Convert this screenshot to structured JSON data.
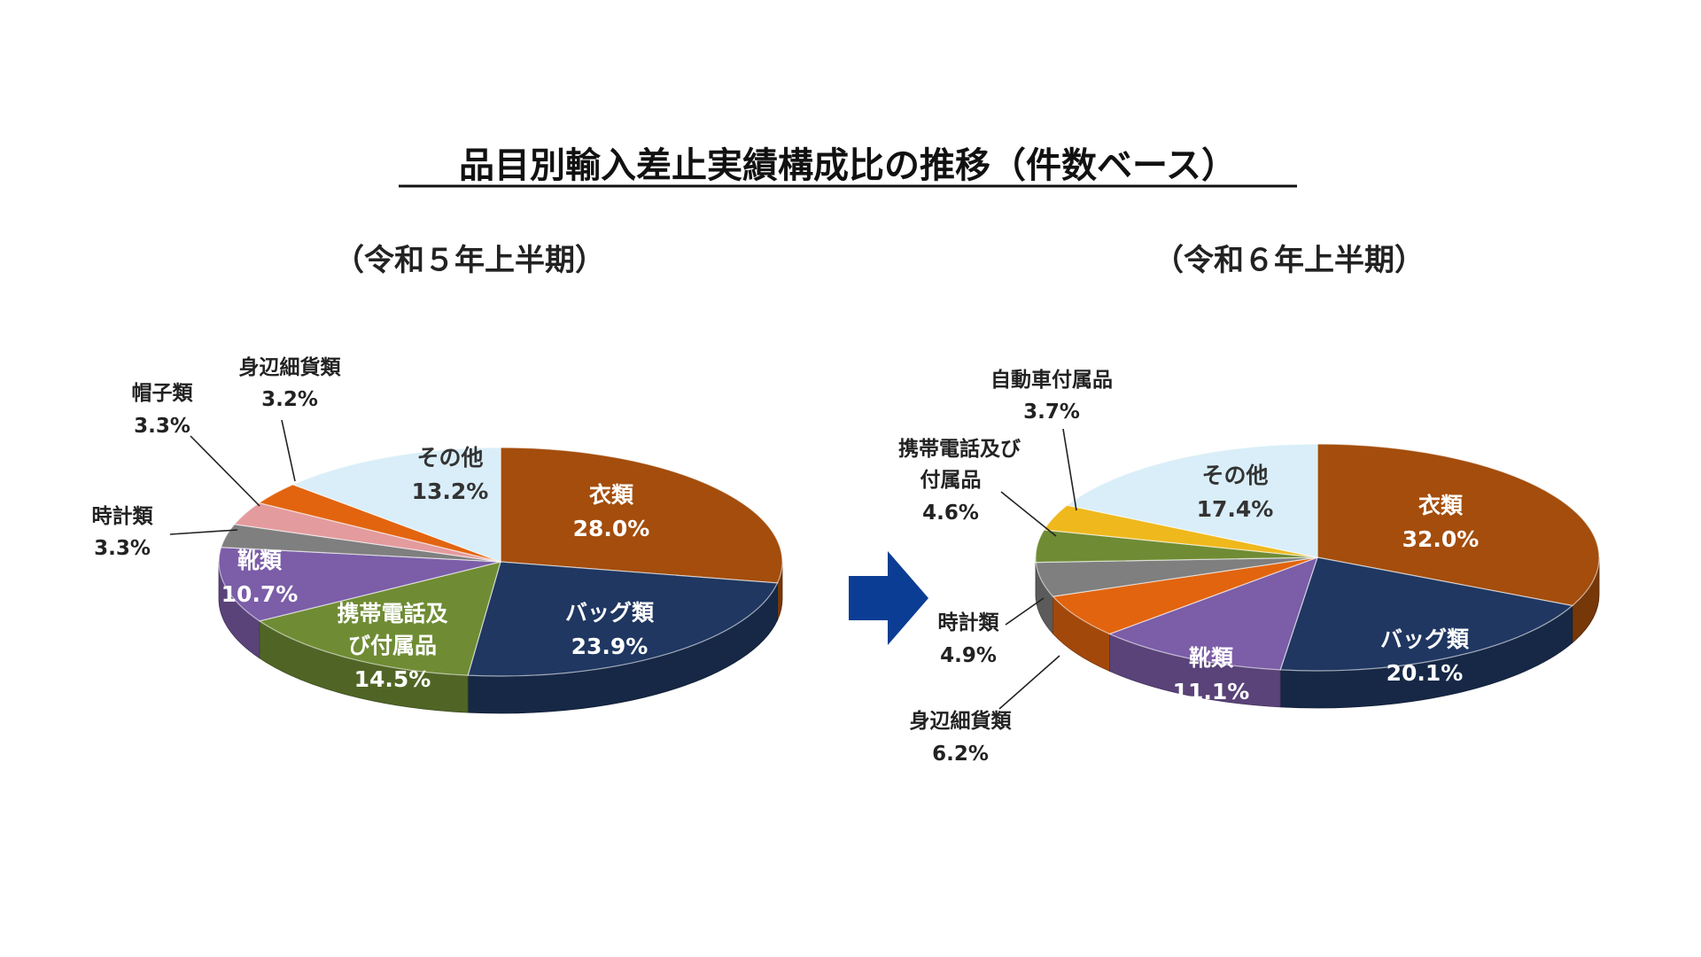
{
  "page": {
    "title": "品目別輸入差止実績構成比の推移（件数ベース）"
  },
  "colors": {
    "clothing": "#a44d0c",
    "bags": "#1f3761",
    "phone": "#6f8c34",
    "shoes": "#7b5da8",
    "watches": "#7f7f7f",
    "hats": "#e49b9e",
    "accessories": "#e2640f",
    "car_parts": "#efb81c",
    "other": "#d9eef8",
    "arrow": "#0b3d94"
  },
  "chart_data": [
    {
      "type": "pie",
      "title": "（令和５年上半期）",
      "slices": [
        {
          "label": "衣類",
          "value": 28.0,
          "value_text": "28.0%",
          "color_key": "clothing",
          "label_position": "inside"
        },
        {
          "label": "バッグ類",
          "value": 23.9,
          "value_text": "23.9%",
          "color_key": "bags",
          "label_position": "inside"
        },
        {
          "label": "携帯電話及び付属品",
          "label_lines": [
            "携帯電話及",
            "び付属品"
          ],
          "value": 14.5,
          "value_text": "14.5%",
          "color_key": "phone",
          "label_position": "inside"
        },
        {
          "label": "靴類",
          "value": 10.7,
          "value_text": "10.7%",
          "color_key": "shoes",
          "label_position": "inside"
        },
        {
          "label": "時計類",
          "value": 3.3,
          "value_text": "3.3%",
          "color_key": "watches",
          "label_position": "outside-left"
        },
        {
          "label": "帽子類",
          "value": 3.3,
          "value_text": "3.3%",
          "color_key": "hats",
          "label_position": "outside-top-left"
        },
        {
          "label": "身辺細貨類",
          "value": 3.2,
          "value_text": "3.2%",
          "color_key": "accessories",
          "label_position": "outside-top"
        },
        {
          "label": "その他",
          "value": 13.2,
          "value_text": "13.2%",
          "color_key": "other",
          "label_position": "inside"
        }
      ]
    },
    {
      "type": "pie",
      "title": "（令和６年上半期）",
      "slices": [
        {
          "label": "衣類",
          "value": 32.0,
          "value_text": "32.0%",
          "color_key": "clothing",
          "label_position": "inside"
        },
        {
          "label": "バッグ類",
          "value": 20.1,
          "value_text": "20.1%",
          "color_key": "bags",
          "label_position": "inside"
        },
        {
          "label": "靴類",
          "value": 11.1,
          "value_text": "11.1%",
          "color_key": "shoes",
          "label_position": "inside"
        },
        {
          "label": "身辺細貨類",
          "value": 6.2,
          "value_text": "6.2%",
          "color_key": "accessories",
          "label_position": "outside-bottom-left"
        },
        {
          "label": "時計類",
          "value": 4.9,
          "value_text": "4.9%",
          "color_key": "watches",
          "label_position": "outside-left"
        },
        {
          "label": "携帯電話及び付属品",
          "label_lines": [
            "携帯電話及び",
            "付属品"
          ],
          "value": 4.6,
          "value_text": "4.6%",
          "color_key": "phone",
          "label_position": "outside-top-left"
        },
        {
          "label": "自動車付属品",
          "value": 3.7,
          "value_text": "3.7%",
          "color_key": "car_parts",
          "label_position": "outside-top"
        },
        {
          "label": "その他",
          "value": 17.4,
          "value_text": "17.4%",
          "color_key": "other",
          "label_position": "inside"
        }
      ]
    }
  ]
}
